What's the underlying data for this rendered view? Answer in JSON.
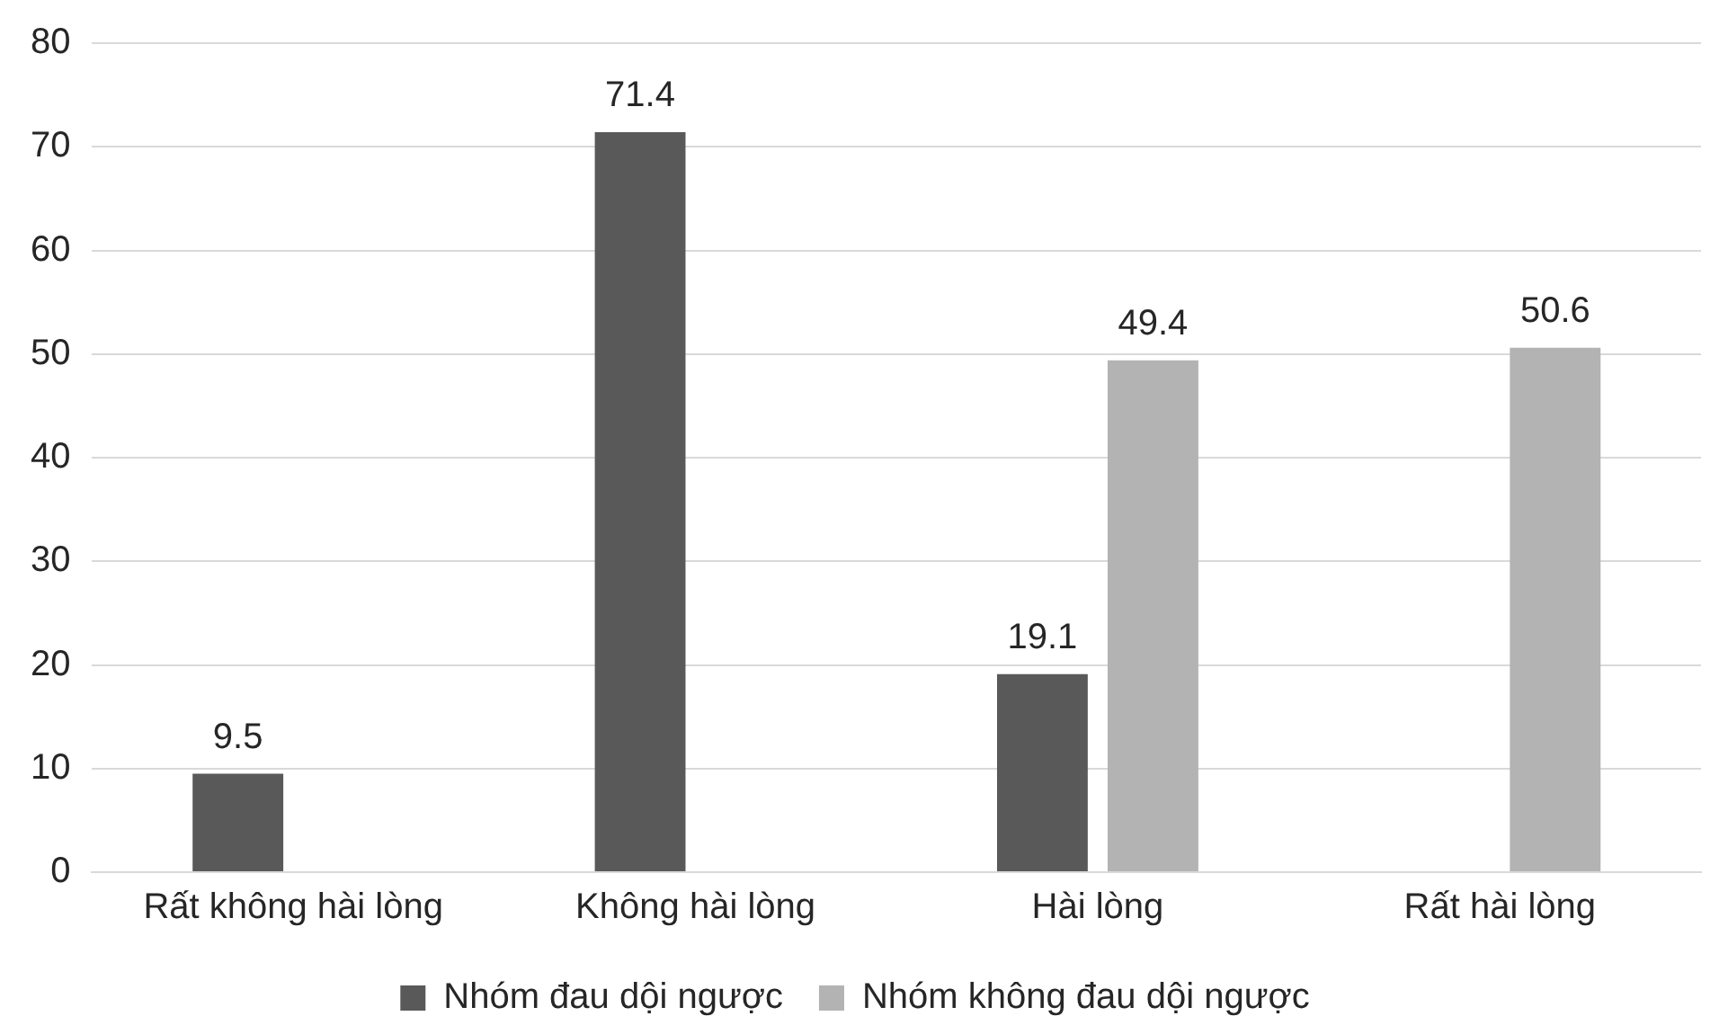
{
  "chart_data": {
    "type": "bar",
    "categories": [
      "Rất không hài lòng",
      "Không hài lòng",
      "Hài lòng",
      "Rất hài lòng"
    ],
    "series": [
      {
        "name": "Nhóm đau dội ngược",
        "color": "#595959",
        "values": [
          9.5,
          71.4,
          19.1,
          null
        ]
      },
      {
        "name": "Nhóm không đau dội ngược",
        "color": "#b3b3b3",
        "values": [
          null,
          null,
          49.4,
          50.6
        ]
      }
    ],
    "ylim": [
      0,
      80
    ],
    "yticks": [
      0,
      10,
      20,
      30,
      40,
      50,
      60,
      70,
      80
    ],
    "grid": "y",
    "legend": "bottom",
    "data_labels": true
  }
}
